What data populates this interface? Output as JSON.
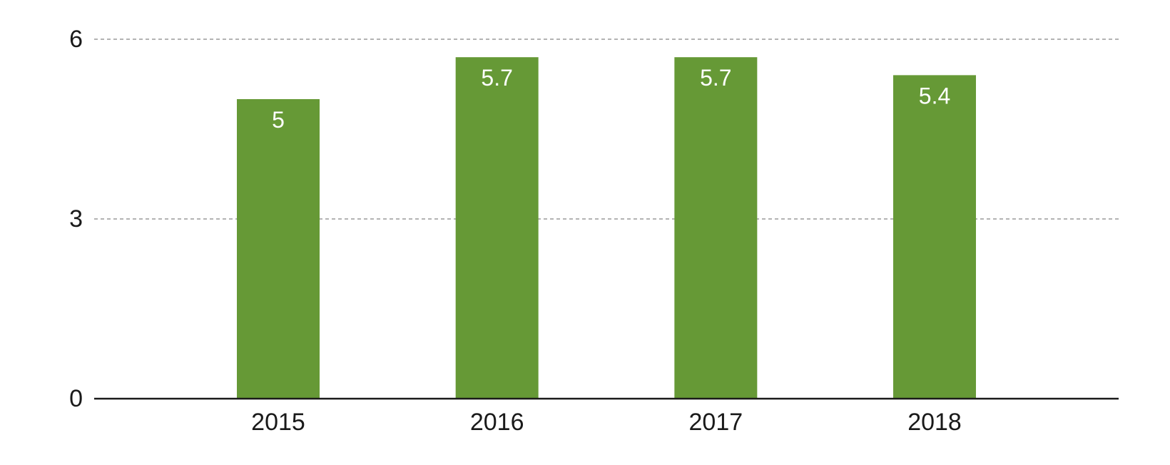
{
  "chart_data": {
    "type": "bar",
    "title": "",
    "xlabel": "",
    "ylabel": "",
    "categories": [
      "2015",
      "2016",
      "2017",
      "2018"
    ],
    "values": [
      5,
      5.7,
      5.7,
      5.4
    ],
    "data_labels": [
      "5",
      "5.7",
      "5.7",
      "5.4"
    ],
    "ylim": [
      0,
      6
    ],
    "yticks": [
      0,
      3,
      6
    ],
    "ytick_labels": [
      "0",
      "3",
      "6"
    ],
    "grid": true,
    "grid_style": "dashed",
    "legend": "none",
    "colors": {
      "bar": "#669936",
      "gridline": "#b3b3b3",
      "axis": "#1a1a1a",
      "data_label": "#ffffff",
      "tick_label": "#1a1a1a"
    }
  }
}
